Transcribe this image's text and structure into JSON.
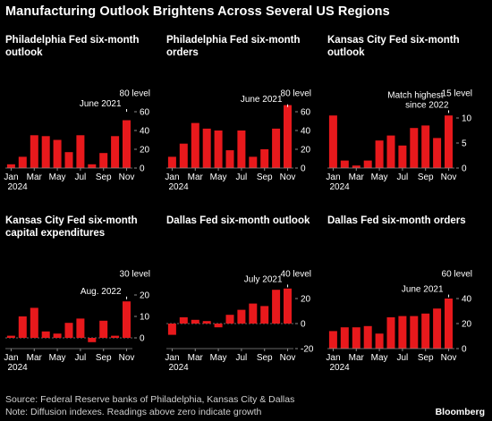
{
  "title": "Manufacturing Outlook Brightens Across Several US Regions",
  "footer": {
    "source": "Source: Federal Reserve banks of Philadelphia, Kansas City & Dallas",
    "note": "Note: Diffusion indexes. Readings above zero indicate growth",
    "brand": "Bloomberg"
  },
  "colors": {
    "bar": "#e8191c",
    "background": "#000000",
    "text": "#ffffff",
    "axis": "#8c8c8c"
  },
  "chart_data": [
    {
      "type": "bar",
      "title": "Philadelphia Fed six-month outlook",
      "unit_label": "level",
      "categories": [
        "Jan 2024",
        "Feb",
        "Mar",
        "Apr",
        "May",
        "Jun",
        "Jul",
        "Aug",
        "Sep",
        "Oct",
        "Nov"
      ],
      "x_tick_labels": [
        "Jan",
        "Mar",
        "May",
        "Jul",
        "Sep",
        "Nov"
      ],
      "year_label": "2024",
      "values": [
        4,
        12,
        35,
        34,
        30,
        17,
        35,
        4,
        16,
        34,
        51
      ],
      "ylim": [
        0,
        80
      ],
      "y_ticks": [
        0,
        20,
        40,
        60,
        80
      ],
      "annotation": {
        "text": "June 2021",
        "value": 60
      }
    },
    {
      "type": "bar",
      "title": "Philadelphia Fed six-month orders",
      "unit_label": "level",
      "categories": [
        "Jan 2024",
        "Feb",
        "Mar",
        "Apr",
        "May",
        "Jun",
        "Jul",
        "Aug",
        "Sep",
        "Oct",
        "Nov"
      ],
      "x_tick_labels": [
        "Jan",
        "Mar",
        "May",
        "Jul",
        "Sep",
        "Nov"
      ],
      "year_label": "2024",
      "values": [
        12,
        26,
        48,
        42,
        40,
        19,
        40,
        12,
        20,
        42,
        67
      ],
      "ylim": [
        0,
        80
      ],
      "y_ticks": [
        0,
        20,
        40,
        60,
        80
      ],
      "annotation": {
        "text": "June 2021",
        "value": 65
      }
    },
    {
      "type": "bar",
      "title": "Kansas City Fed six-month outlook",
      "unit_label": "level",
      "categories": [
        "Jan 2024",
        "Feb",
        "Mar",
        "Apr",
        "May",
        "Jun",
        "Jul",
        "Aug",
        "Sep",
        "Oct",
        "Nov"
      ],
      "x_tick_labels": [
        "Jan",
        "Mar",
        "May",
        "Jul",
        "Sep",
        "Nov"
      ],
      "year_label": "2024",
      "values": [
        10.5,
        1.5,
        0.5,
        1.5,
        5.5,
        6.5,
        4.5,
        8,
        8.5,
        6,
        10.5
      ],
      "ylim": [
        0,
        15
      ],
      "y_ticks": [
        0,
        5,
        10,
        15
      ],
      "annotation": {
        "text": "Match highest since 2022",
        "value": 11
      }
    },
    {
      "type": "bar",
      "title": "Kansas City Fed six-month capital expenditures",
      "unit_label": "level",
      "categories": [
        "Jan 2024",
        "Feb",
        "Mar",
        "Apr",
        "May",
        "Jun",
        "Jul",
        "Aug",
        "Sep",
        "Oct",
        "Nov"
      ],
      "x_tick_labels": [
        "Jan",
        "Mar",
        "May",
        "Jul",
        "Sep",
        "Nov"
      ],
      "year_label": "2024",
      "values": [
        1,
        10,
        14,
        3,
        2,
        7,
        9,
        -2,
        8,
        1,
        17
      ],
      "ylim": [
        -5,
        30
      ],
      "y_ticks": [
        0,
        10,
        20,
        30
      ],
      "annotation": {
        "text": "Aug. 2022",
        "value": 18
      }
    },
    {
      "type": "bar",
      "title": "Dallas Fed six-month outlook",
      "unit_label": "level",
      "categories": [
        "Jan 2024",
        "Feb",
        "Mar",
        "Apr",
        "May",
        "Jun",
        "Jul",
        "Aug",
        "Sep",
        "Oct",
        "Nov"
      ],
      "x_tick_labels": [
        "Jan",
        "Mar",
        "May",
        "Jul",
        "Sep",
        "Nov"
      ],
      "year_label": "2024",
      "values": [
        -9,
        5,
        3,
        2,
        -3,
        7,
        11,
        16,
        14,
        27,
        28
      ],
      "ylim": [
        -20,
        40
      ],
      "y_ticks": [
        -20,
        0,
        20,
        40
      ],
      "annotation": {
        "text": "July 2021",
        "value": 29
      }
    },
    {
      "type": "bar",
      "title": "Dallas Fed six-month orders",
      "unit_label": "level",
      "categories": [
        "Jan 2024",
        "Feb",
        "Mar",
        "Apr",
        "May",
        "Jun",
        "Jul",
        "Aug",
        "Sep",
        "Oct",
        "Nov"
      ],
      "x_tick_labels": [
        "Jan",
        "Mar",
        "May",
        "Jul",
        "Sep",
        "Nov"
      ],
      "year_label": "2024",
      "values": [
        14,
        17,
        17,
        18,
        12,
        25,
        26,
        26,
        28,
        32,
        40
      ],
      "ylim": [
        0,
        60
      ],
      "y_ticks": [
        0,
        20,
        40,
        60
      ],
      "annotation": {
        "text": "June 2021",
        "value": 41
      }
    }
  ]
}
